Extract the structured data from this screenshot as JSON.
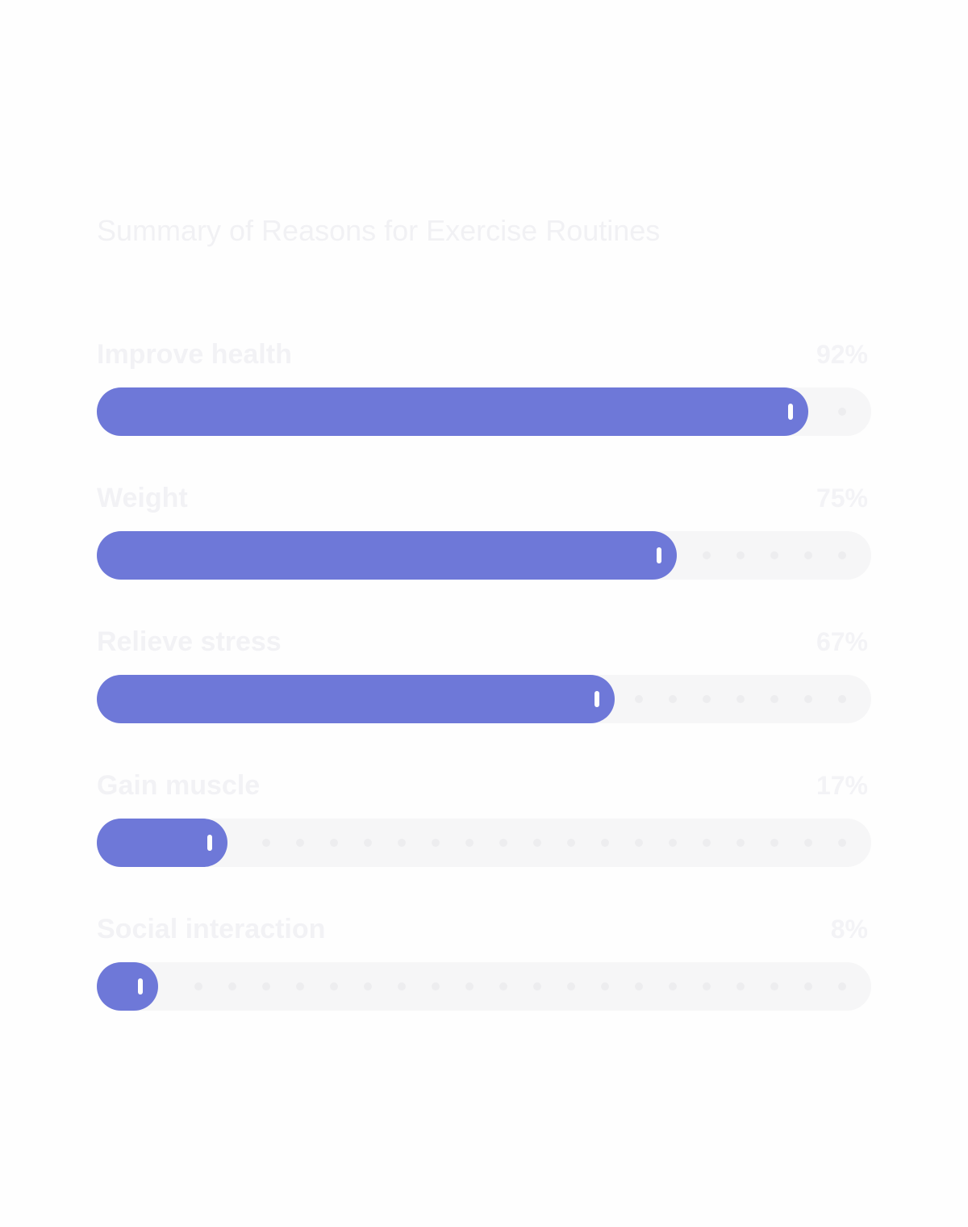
{
  "chart_data": {
    "type": "bar",
    "orientation": "horizontal",
    "title": "Summary of Reasons for Exercise Routines",
    "categories": [
      "Improve health",
      "Weight",
      "Relieve stress",
      "Gain muscle",
      "Social interaction"
    ],
    "values": [
      92,
      75,
      67,
      17,
      8
    ],
    "value_labels": [
      "92%",
      "75%",
      "67%",
      "17%",
      "8%"
    ],
    "xlim": [
      0,
      100
    ],
    "unit": "%"
  },
  "colors": {
    "fill": "#6e78d8",
    "track": "#f6f6f7",
    "dot": "#ededef",
    "grip": "#ffffff"
  }
}
